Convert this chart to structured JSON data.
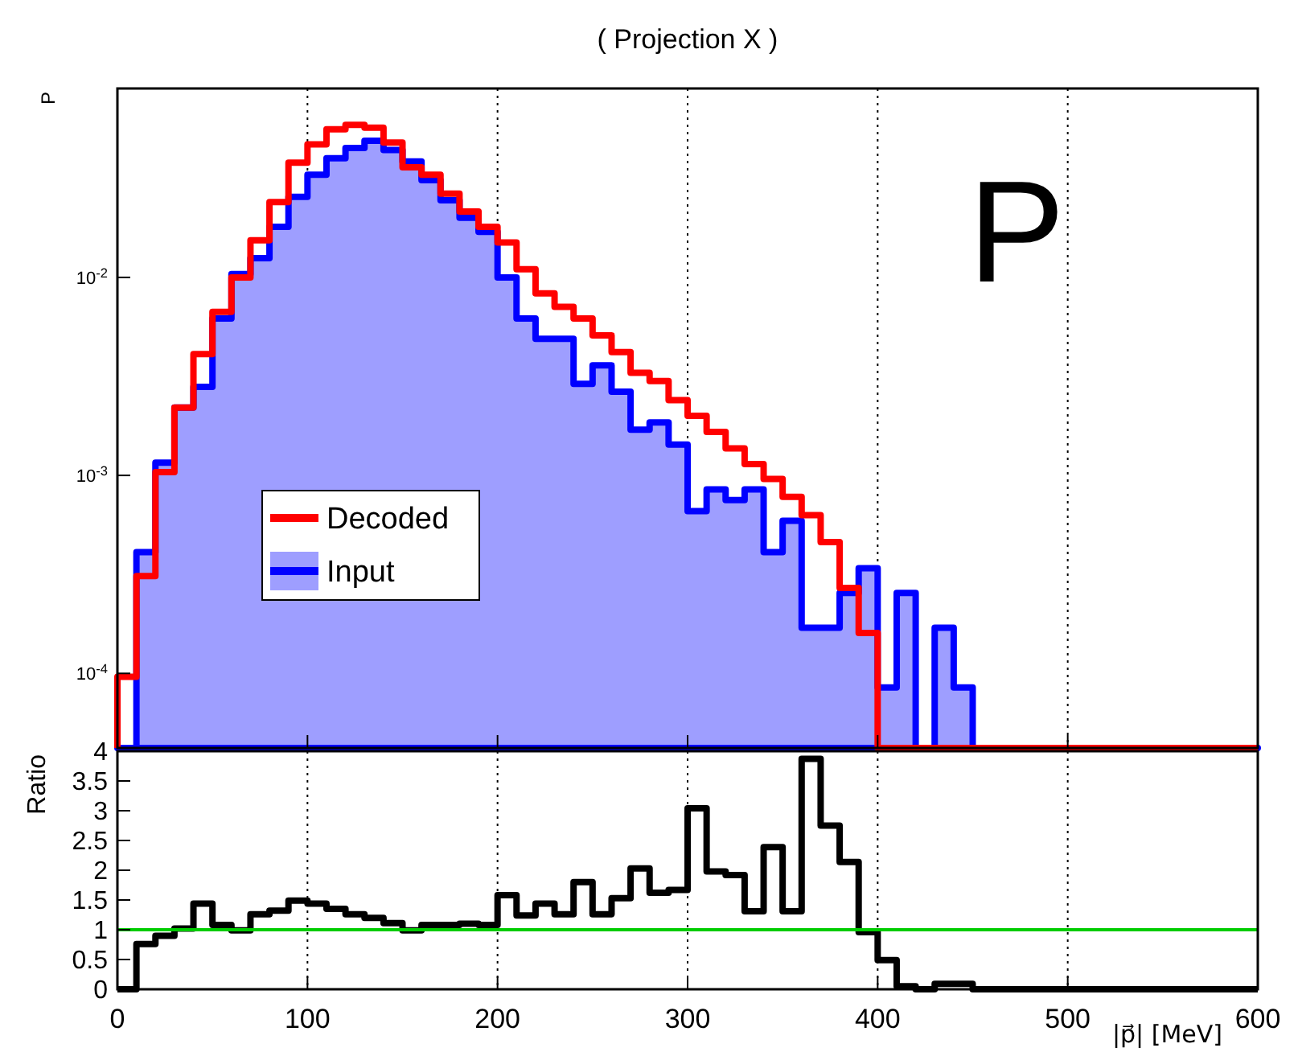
{
  "chart_data": [
    {
      "type": "histogram",
      "title": "( Projection X )",
      "ylabel": "P",
      "annotations": [
        "P"
      ],
      "log": "y",
      "grid": "x",
      "legend": "left",
      "tick_labels": "y",
      "xlim": [
        0,
        600
      ],
      "xticks": [
        0,
        100,
        200,
        300,
        400,
        500,
        600
      ],
      "ylim": [
        4.2e-05,
        0.09
      ],
      "yticks": [
        {
          "value": 0.0001,
          "label": "10$^{-4}$"
        },
        {
          "value": 0.001,
          "label": "10$^{-3}$"
        },
        {
          "value": 0.01,
          "label": "10$^{-2}$"
        }
      ],
      "bins": [
        0,
        10,
        20,
        30,
        40,
        50,
        60,
        70,
        80,
        90,
        100,
        110,
        120,
        130,
        140,
        150,
        160,
        170,
        180,
        190,
        200,
        210,
        220,
        230,
        240,
        250,
        260,
        270,
        280,
        290,
        300,
        310,
        320,
        330,
        340,
        350,
        360,
        370,
        380,
        390,
        400,
        410,
        420,
        430,
        440,
        450,
        460,
        470,
        480,
        490,
        500,
        510,
        520,
        530,
        540,
        550,
        560,
        570,
        580,
        590,
        600
      ],
      "series": [
        {
          "name": "Decoded",
          "type": "histogram",
          "color": "#ff0000",
          "values": [
            9.6e-05,
            0.00031,
            0.00104,
            0.0022,
            0.0041,
            0.0067,
            0.01,
            0.0154,
            0.024,
            0.038,
            0.047,
            0.056,
            0.059,
            0.057,
            0.048,
            0.036,
            0.033,
            0.0265,
            0.0215,
            0.018,
            0.015,
            0.011,
            0.0083,
            0.0071,
            0.0062,
            0.0051,
            0.0042,
            0.0033,
            0.003,
            0.0024,
            0.002,
            0.00166,
            0.00137,
            0.00114,
            0.00096,
            0.00078,
            0.00063,
            0.00046,
            0.00027,
            0.00016,
            null,
            null,
            null,
            null,
            null,
            null,
            null,
            null,
            null,
            null,
            null,
            null,
            null,
            null,
            null,
            null,
            null,
            null,
            null,
            null
          ]
        },
        {
          "name": "Input",
          "color": "#0000ff",
          "values": [
            null,
            0.00041,
            0.00116,
            0.0022,
            0.0028,
            0.0062,
            0.0104,
            0.0125,
            0.018,
            0.0255,
            0.033,
            0.04,
            0.045,
            0.049,
            0.044,
            0.0385,
            0.031,
            0.0245,
            0.02,
            0.017,
            0.01,
            0.0062,
            0.0049,
            0.0049,
            0.0029,
            0.0036,
            0.00265,
            0.0017,
            0.00185,
            0.00143,
            0.00066,
            0.00085,
            0.00075,
            0.00085,
            0.00041,
            0.00059,
            0.00017,
            0.00017,
            0.000255,
            0.00034,
            8.5e-05,
            0.000255,
            null,
            0.00017,
            8.5e-05,
            null,
            null,
            null,
            null,
            null,
            null,
            null,
            null,
            null,
            null,
            null,
            null,
            null,
            null,
            null
          ]
        }
      ]
    },
    {
      "type": "histogram",
      "xlabel": "|p⃗|  [MeV]",
      "ylabel": "Ratio",
      "grid": "x",
      "xlim": [
        0,
        600
      ],
      "xticks": [
        0,
        100,
        200,
        300,
        400,
        500,
        600
      ],
      "ylim": [
        0,
        4
      ],
      "yticks": [
        0,
        0.5,
        1,
        1.5,
        2,
        2.5,
        3,
        3.5,
        4
      ],
      "bins": [
        0,
        10,
        20,
        30,
        40,
        50,
        60,
        70,
        80,
        90,
        100,
        110,
        120,
        130,
        140,
        150,
        160,
        170,
        180,
        190,
        200,
        210,
        220,
        230,
        240,
        250,
        260,
        270,
        280,
        290,
        300,
        310,
        320,
        330,
        340,
        350,
        360,
        370,
        380,
        390,
        400,
        410,
        420,
        430,
        440,
        450,
        460,
        470,
        480,
        490,
        500,
        510,
        520,
        530,
        540,
        550,
        560,
        570,
        580,
        590,
        600
      ],
      "ref_lines": [
        {
          "axis": "y",
          "value": 1,
          "color": "#00cc00"
        }
      ],
      "series": [
        {
          "type": "histogram",
          "color": "#000000",
          "values": [
            0,
            0.76,
            0.9,
            1.02,
            1.44,
            1.08,
            0.99,
            1.26,
            1.32,
            1.49,
            1.44,
            1.35,
            1.26,
            1.2,
            1.11,
            0.99,
            1.08,
            1.08,
            1.1,
            1.08,
            1.58,
            1.24,
            1.44,
            1.26,
            1.8,
            1.26,
            1.53,
            2.03,
            1.62,
            1.67,
            3.04,
            1.98,
            1.92,
            1.31,
            2.39,
            1.31,
            3.87,
            2.75,
            2.14,
            0.96,
            0.49,
            0.05,
            0,
            0.09,
            0.09,
            0,
            0,
            0,
            0,
            0,
            0,
            0,
            0,
            0,
            0,
            0,
            0,
            0,
            0,
            0
          ]
        }
      ]
    }
  ]
}
